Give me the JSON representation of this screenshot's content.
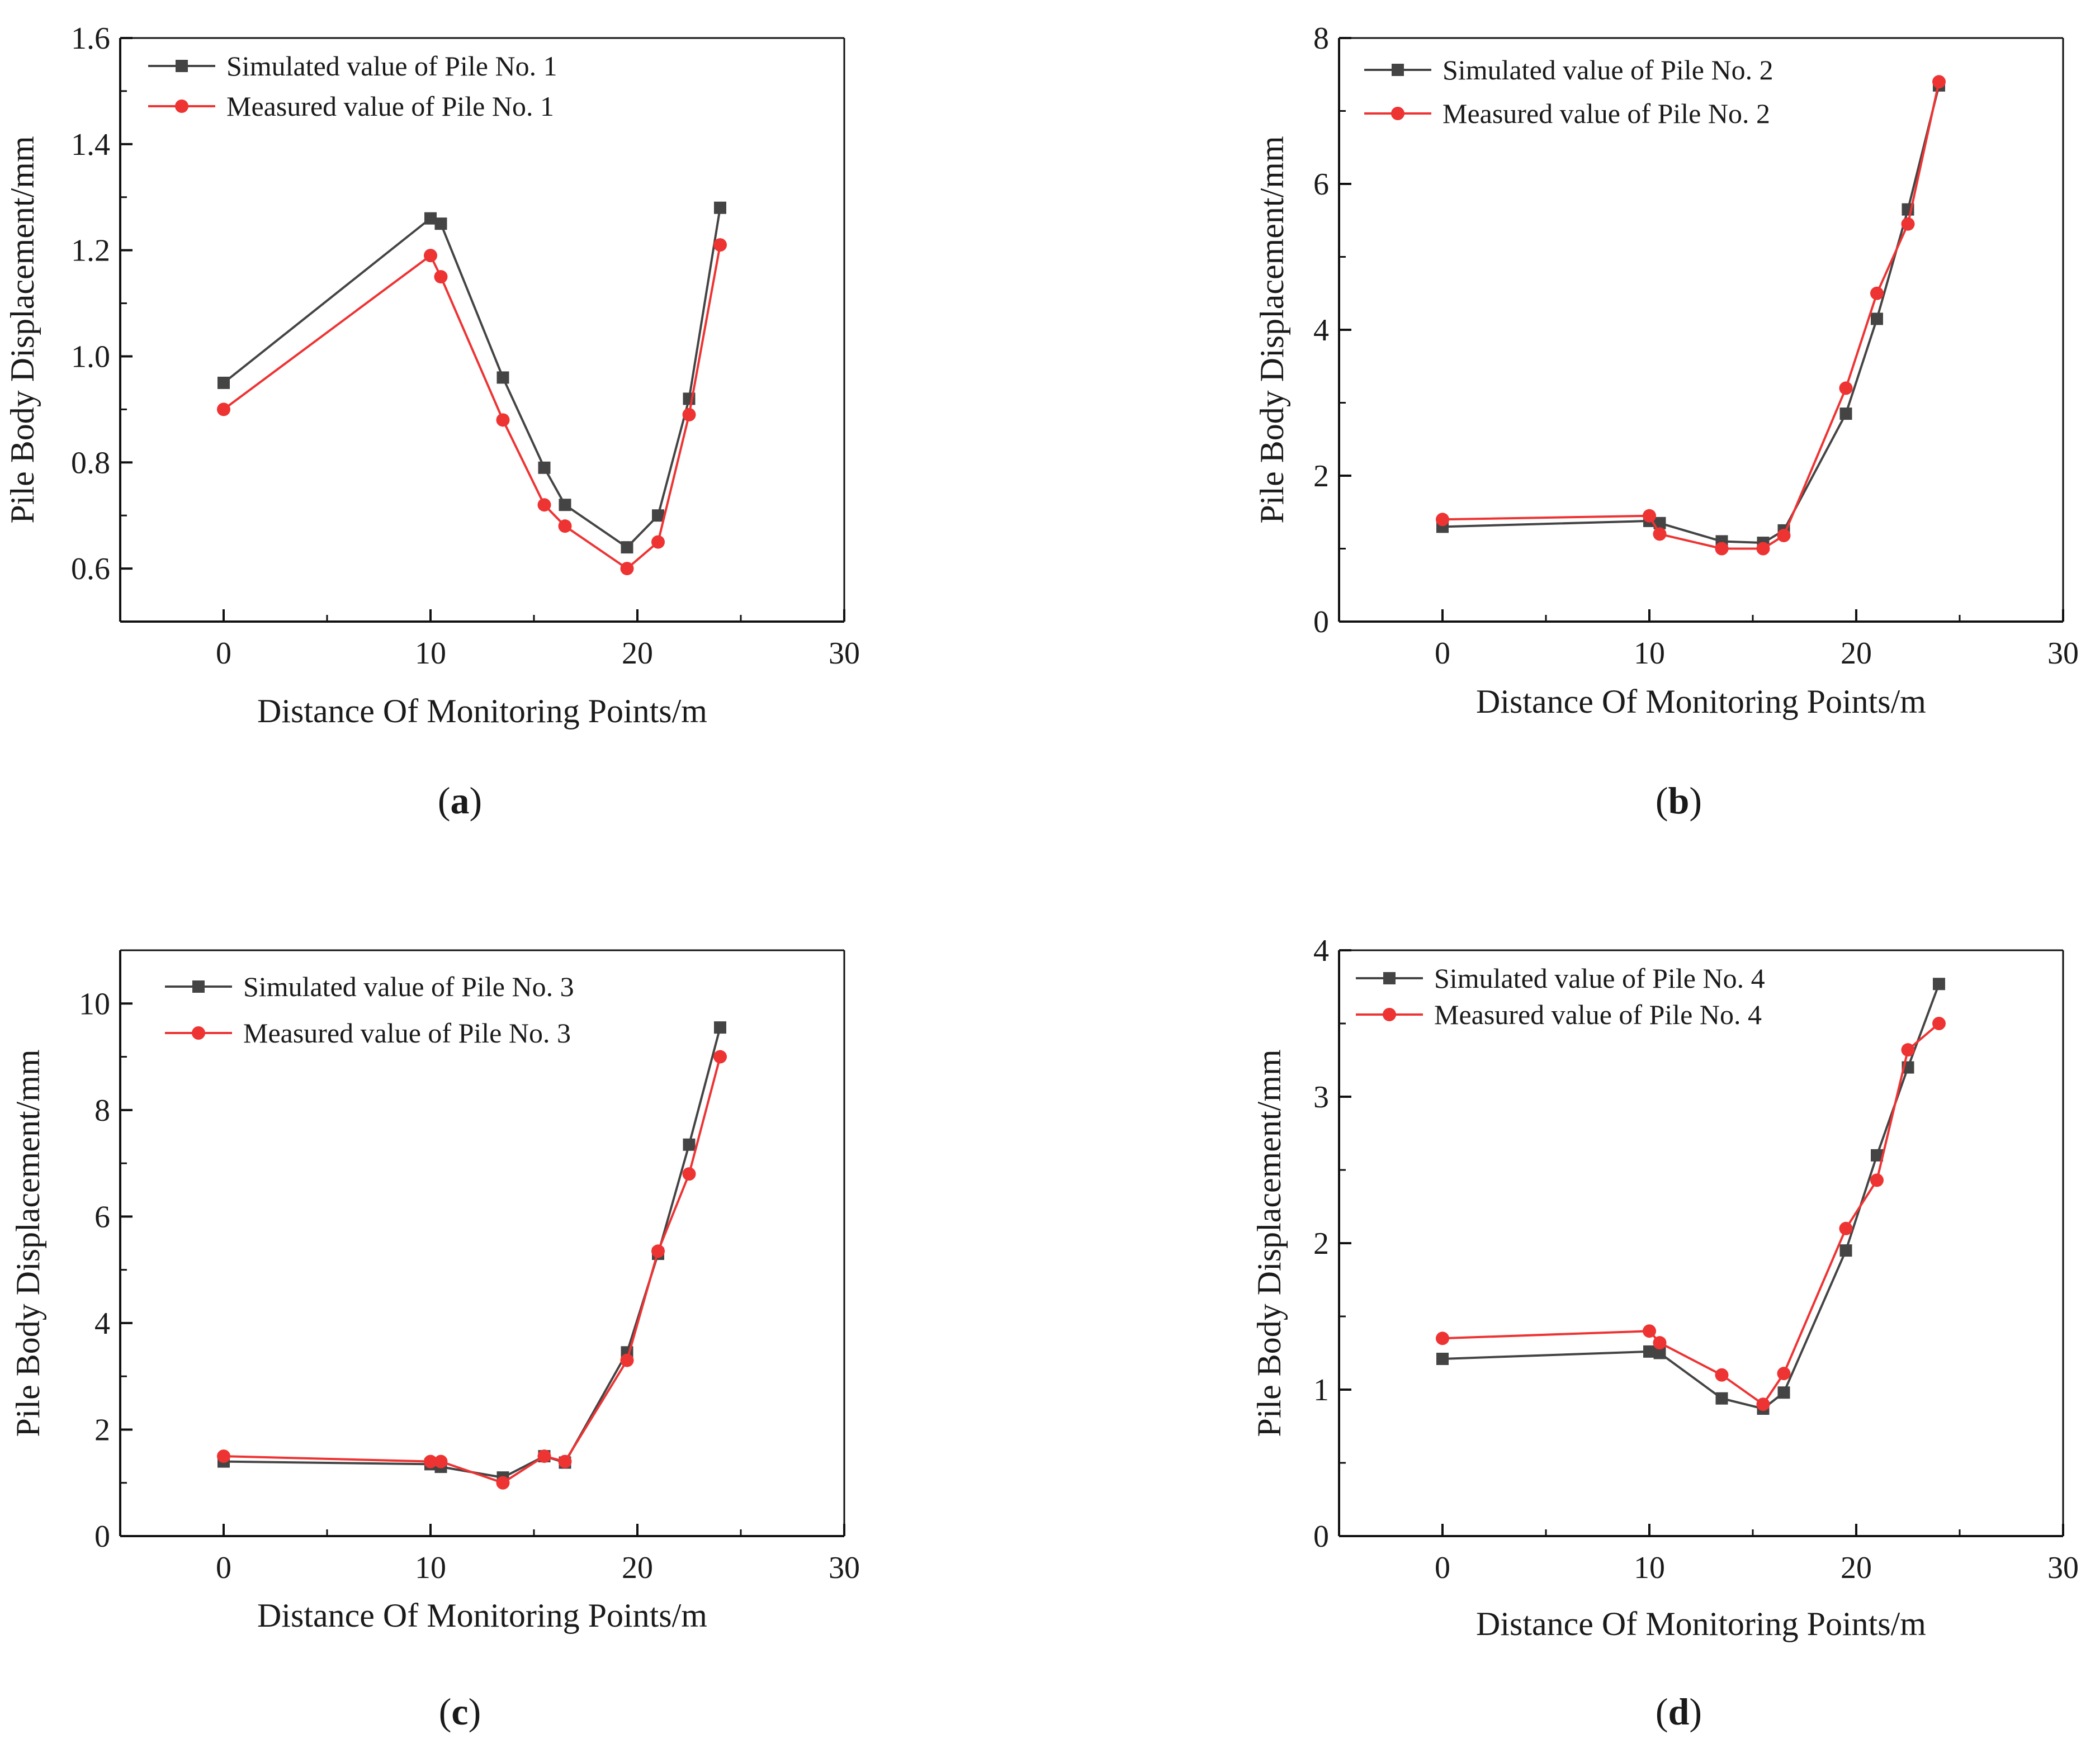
{
  "chart_data": [
    {
      "type": "line",
      "panel": "(a)",
      "caption_letter": "a",
      "xlabel": "Distance Of Monitoring Points/m",
      "ylabel": "Pile Body Displacement/mm",
      "xlim": [
        -5,
        30
      ],
      "ylim": [
        0.5,
        1.6
      ],
      "xticks": [
        0,
        10,
        20,
        30
      ],
      "xtick_labels": [
        "0",
        "10",
        "20",
        "30"
      ],
      "yticks": [
        0.6,
        0.8,
        1.0,
        1.2,
        1.4,
        1.6
      ],
      "ytick_labels": [
        "0.6",
        "0.8",
        "1.0",
        "1.2",
        "1.4",
        "1.6"
      ],
      "legend_position": "top-left",
      "series": [
        {
          "name": "Simulated value of Pile No. 1",
          "marker": "square",
          "color": "#444444",
          "x": [
            0,
            10,
            10.5,
            13.5,
            15.5,
            16.5,
            19.5,
            21,
            22.5,
            24
          ],
          "y": [
            0.95,
            1.26,
            1.25,
            0.96,
            0.79,
            0.72,
            0.64,
            0.7,
            0.92,
            1.28
          ]
        },
        {
          "name": "Measured value of Pile No. 1",
          "marker": "circle",
          "color": "#ee3333",
          "x": [
            0,
            10,
            10.5,
            13.5,
            15.5,
            16.5,
            19.5,
            21,
            22.5,
            24
          ],
          "y": [
            0.9,
            1.19,
            1.15,
            0.88,
            0.72,
            0.68,
            0.6,
            0.65,
            0.89,
            1.21
          ]
        }
      ]
    },
    {
      "type": "line",
      "panel": "(b)",
      "caption_letter": "b",
      "xlabel": "Distance Of Monitoring Points/m",
      "ylabel": "Pile Body Displacement/mm",
      "xlim": [
        -5,
        30
      ],
      "ylim": [
        0,
        8
      ],
      "xticks": [
        0,
        10,
        20,
        30
      ],
      "xtick_labels": [
        "0",
        "10",
        "20",
        "30"
      ],
      "yticks": [
        0,
        2,
        4,
        6,
        8
      ],
      "ytick_labels": [
        "0",
        "2",
        "4",
        "6",
        "8"
      ],
      "legend_position": "top-left",
      "series": [
        {
          "name": "Simulated value of Pile No. 2",
          "marker": "square",
          "color": "#444444",
          "x": [
            0,
            10,
            10.5,
            13.5,
            15.5,
            16.5,
            19.5,
            21,
            22.5,
            24
          ],
          "y": [
            1.3,
            1.38,
            1.35,
            1.1,
            1.08,
            1.25,
            2.85,
            4.15,
            5.65,
            7.35
          ]
        },
        {
          "name": "Measured value of Pile No. 2",
          "marker": "circle",
          "color": "#ee3333",
          "x": [
            0,
            10,
            10.5,
            13.5,
            15.5,
            16.5,
            19.5,
            21,
            22.5,
            24
          ],
          "y": [
            1.4,
            1.45,
            1.2,
            1.0,
            1.0,
            1.18,
            3.2,
            4.5,
            5.45,
            7.4
          ]
        }
      ]
    },
    {
      "type": "line",
      "panel": "(c)",
      "caption_letter": "c",
      "xlabel": "Distance Of Monitoring Points/m",
      "ylabel": "Pile Body Displacement/mm",
      "xlim": [
        -5,
        30
      ],
      "ylim": [
        0,
        11
      ],
      "xticks": [
        0,
        10,
        20,
        30
      ],
      "xtick_labels": [
        "0",
        "10",
        "20",
        "30"
      ],
      "yticks": [
        0,
        2,
        4,
        6,
        8,
        10
      ],
      "ytick_labels": [
        "0",
        "2",
        "4",
        "6",
        "8",
        "10"
      ],
      "legend_position": "top-left",
      "series": [
        {
          "name": "Simulated value of Pile No. 3",
          "marker": "square",
          "color": "#444444",
          "x": [
            0,
            10,
            10.5,
            13.5,
            15.5,
            16.5,
            19.5,
            21,
            22.5,
            24
          ],
          "y": [
            1.4,
            1.35,
            1.3,
            1.1,
            1.5,
            1.38,
            3.45,
            5.3,
            7.35,
            9.55
          ]
        },
        {
          "name": "Measured value of Pile No. 3",
          "marker": "circle",
          "color": "#ee3333",
          "x": [
            0,
            10,
            10.5,
            13.5,
            15.5,
            16.5,
            19.5,
            21,
            22.5,
            24
          ],
          "y": [
            1.5,
            1.4,
            1.4,
            1.0,
            1.5,
            1.4,
            3.3,
            5.35,
            6.8,
            9.0
          ]
        }
      ]
    },
    {
      "type": "line",
      "panel": "(d)",
      "caption_letter": "d",
      "xlabel": "Distance Of Monitoring Points/m",
      "ylabel": "Pile Body Displacement/mm",
      "xlim": [
        -5,
        30
      ],
      "ylim": [
        0,
        4
      ],
      "xticks": [
        0,
        10,
        20,
        30
      ],
      "xtick_labels": [
        "0",
        "10",
        "20",
        "30"
      ],
      "yticks": [
        0,
        1,
        2,
        3,
        4
      ],
      "ytick_labels": [
        "0",
        "1",
        "2",
        "3",
        "4"
      ],
      "legend_position": "top-left",
      "series": [
        {
          "name": "Simulated value of Pile No. 4",
          "marker": "square",
          "color": "#444444",
          "x": [
            0,
            10,
            10.5,
            13.5,
            15.5,
            16.5,
            19.5,
            21,
            22.5,
            24
          ],
          "y": [
            1.21,
            1.26,
            1.25,
            0.94,
            0.87,
            0.98,
            1.95,
            2.6,
            3.2,
            3.77
          ]
        },
        {
          "name": "Measured value of Pile No. 4",
          "marker": "circle",
          "color": "#ee3333",
          "x": [
            0,
            10,
            10.5,
            13.5,
            15.5,
            16.5,
            19.5,
            21,
            22.5,
            24
          ],
          "y": [
            1.35,
            1.4,
            1.32,
            1.1,
            0.9,
            1.11,
            2.1,
            2.43,
            3.32,
            3.5
          ]
        }
      ]
    }
  ]
}
